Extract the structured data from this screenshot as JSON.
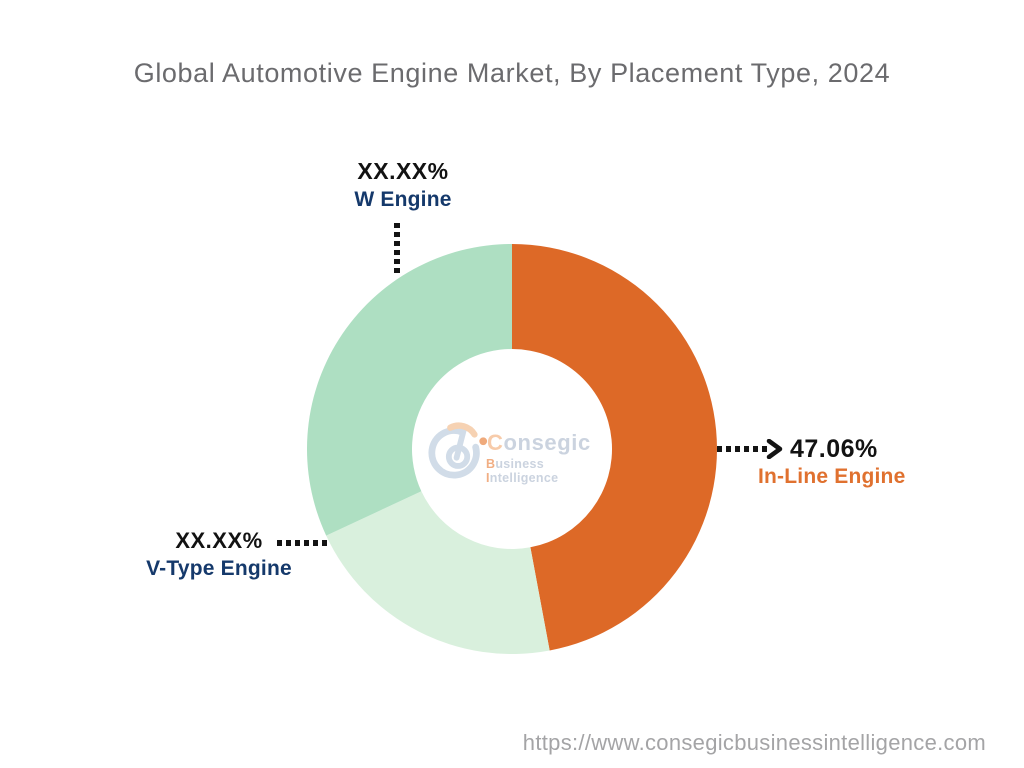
{
  "title": "Global Automotive Engine Market, By Placement Type, 2024",
  "footer": {
    "url": "https://www.consegicbusinessintelligence.com"
  },
  "logo": {
    "name_initial": "C",
    "name_rest": "onsegic",
    "tagline_word1_initial": "B",
    "tagline_word1_rest": "usiness ",
    "tagline_word2_initial": "I",
    "tagline_word2_rest": "ntelligence",
    "brand_text_color": "#C2CCDA",
    "brand_name_accent_color": "#F6C39C",
    "brand_tagline_accent_color": "#EFA06E"
  },
  "chart_data": {
    "type": "pie",
    "subtype": "donut",
    "title": "Global Automotive Engine Market, By Placement Type, 2024",
    "start_angle_deg": 0,
    "direction": "clockwise",
    "donut_hole_ratio": 0.4878,
    "legend": "none",
    "segments": [
      {
        "label": "In-Line Engine",
        "display_value": "47.06%",
        "value": 47.06,
        "color": "#DD6927",
        "label_color": "#E0712F"
      },
      {
        "label": "V-Type Engine",
        "display_value": "XX.XX%",
        "value": 21.0,
        "color": "#D9F0DD",
        "label_color": "#15396B"
      },
      {
        "label": "W Engine",
        "display_value": "XX.XX%",
        "value": 31.94,
        "color": "#AEDFC2",
        "label_color": "#15396B"
      }
    ],
    "notes": "V-Type and W Engine shares are masked as XX.XX% in the image; their numeric values are estimated from arc angles."
  }
}
